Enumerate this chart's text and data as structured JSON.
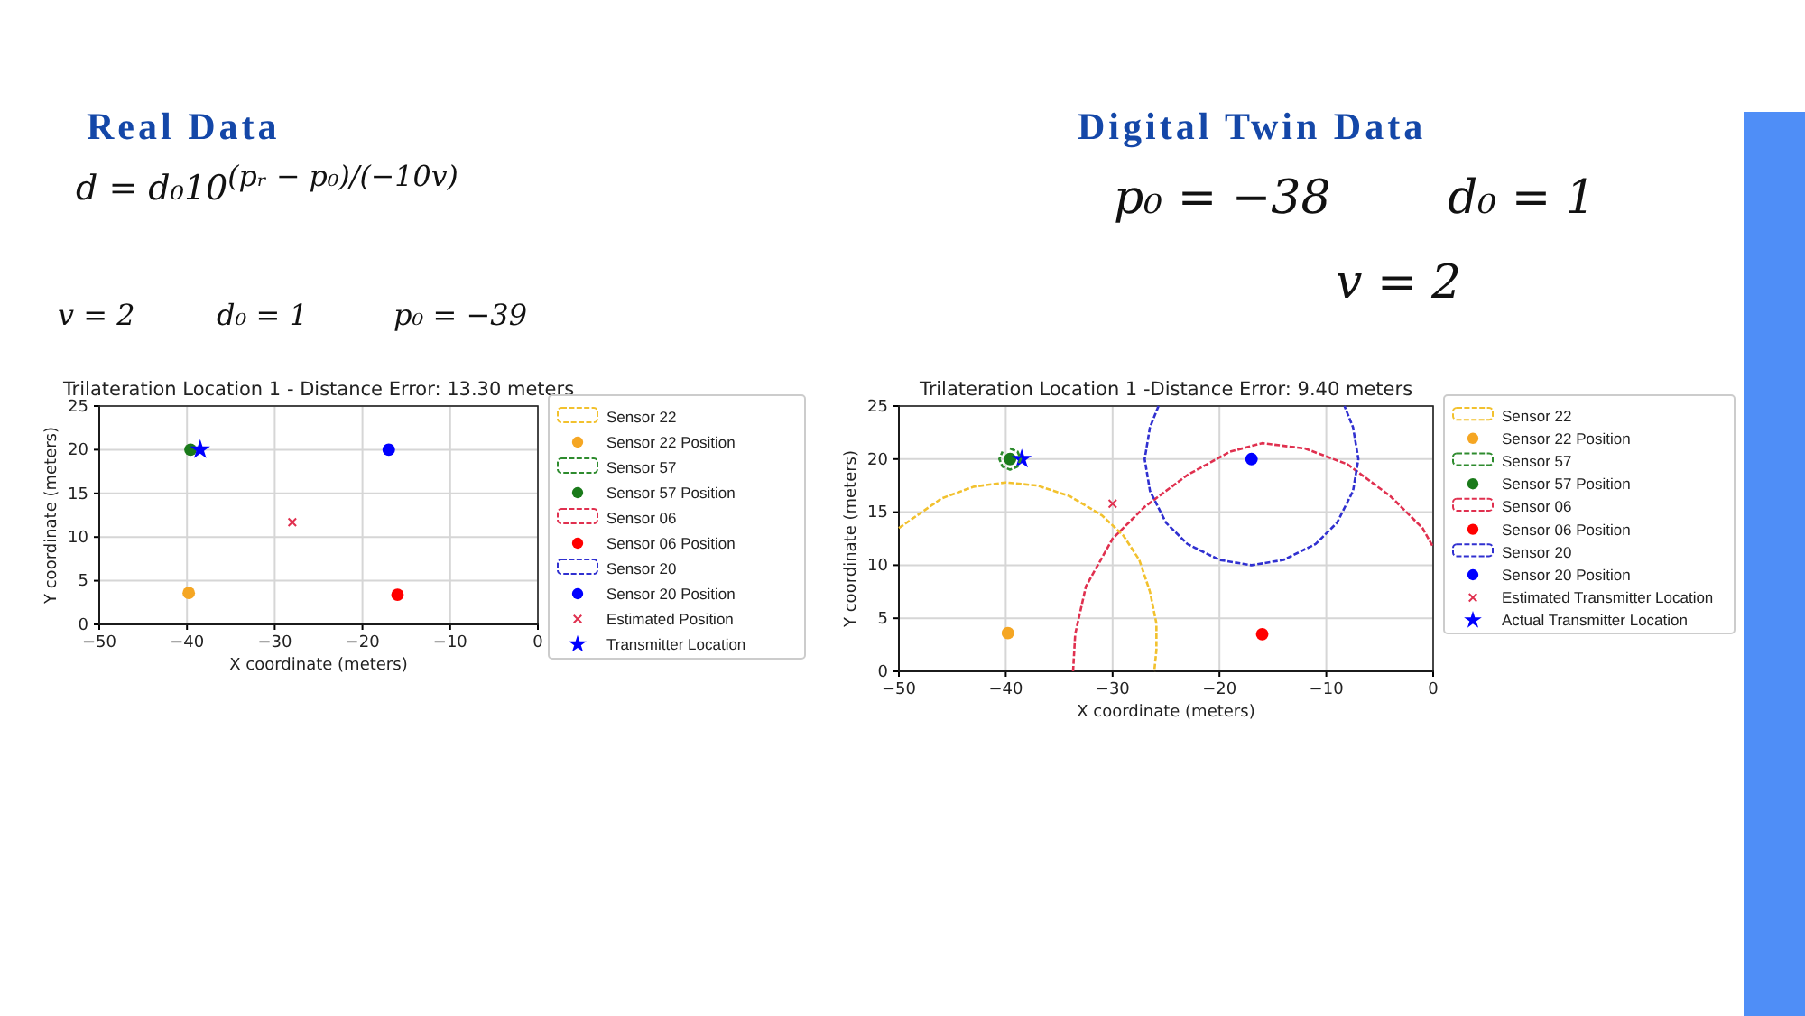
{
  "chart_data": [
    {
      "type": "scatter",
      "title": "Trilateration Location 1 - Distance Error: 13.30 meters",
      "xlabel": "X coordinate (meters)",
      "ylabel": "Y coordinate (meters)",
      "annotations": [
        "Real Data",
        "d = d₀10$^{(pᵣ − p₀)/(−10v)}$",
        "v = 2",
        "d₀ = 1",
        "p₀ = −39"
      ],
      "xlim": [
        -50,
        0
      ],
      "xticks": [
        -50,
        -40,
        -30,
        -20,
        -10,
        0
      ],
      "ylim": [
        0,
        25
      ],
      "yticks": [
        0,
        5,
        10,
        15,
        20,
        25
      ],
      "grid": true,
      "legend": "right",
      "series": [
        {
          "name": "Sensor 22",
          "type": "line",
          "line_style": "dashed",
          "color": "#f2c12e"
        },
        {
          "name": "Sensor 22 Position",
          "marker": "circle",
          "color": "#f5a623",
          "x": [
            -39.8
          ],
          "values": [
            3.6
          ]
        },
        {
          "name": "Sensor 57",
          "type": "line",
          "line_style": "dashed",
          "color": "#2e8b2e"
        },
        {
          "name": "Sensor 57 Position",
          "marker": "circle",
          "color": "#1a7a1a",
          "x": [
            -39.6
          ],
          "values": [
            20
          ]
        },
        {
          "name": "Sensor 06",
          "type": "line",
          "line_style": "dashed",
          "color": "#e0304f"
        },
        {
          "name": "Sensor 06 Position",
          "marker": "circle",
          "color": "#ff0000",
          "x": [
            -16
          ],
          "values": [
            3.4
          ]
        },
        {
          "name": "Sensor 20",
          "type": "line",
          "line_style": "dashed",
          "color": "#3030d0"
        },
        {
          "name": "Sensor 20 Position",
          "marker": "circle",
          "color": "#0000ff",
          "x": [
            -17
          ],
          "values": [
            20
          ]
        },
        {
          "name": "Estimated Position",
          "marker": "cross",
          "color": "#e0304f",
          "x": [
            -28
          ],
          "values": [
            11.7
          ]
        },
        {
          "name": "Transmitter Location",
          "marker": "star",
          "color": "#0000ff",
          "x": [
            -38.5
          ],
          "values": [
            20
          ]
        }
      ]
    },
    {
      "type": "scatter",
      "title": "Trilateration Location 1 -Distance Error: 9.40 meters",
      "xlabel": "X coordinate (meters)",
      "ylabel": "Y coordinate (meters)",
      "annotations": [
        "Digital Twin Data",
        "p₀ = −38",
        "d₀ = 1",
        "v = 2"
      ],
      "xlim": [
        -50,
        0
      ],
      "xticks": [
        -50,
        -40,
        -30,
        -20,
        -10,
        0
      ],
      "ylim": [
        0,
        25
      ],
      "yticks": [
        0,
        5,
        10,
        15,
        20,
        25
      ],
      "grid": true,
      "legend": "right",
      "series": [
        {
          "name": "Sensor 22",
          "type": "line",
          "line_style": "dashed",
          "color": "#f2c12e",
          "x": [
            -50,
            -46,
            -43,
            -40,
            -37,
            -34,
            -31,
            -29,
            -27.5,
            -26.5,
            -25.9,
            -25.9,
            -26.1
          ],
          "values": [
            13.5,
            16.3,
            17.4,
            17.8,
            17.5,
            16.5,
            14.7,
            12.8,
            10.5,
            7.5,
            4.5,
            2,
            0
          ]
        },
        {
          "name": "Sensor 22 Position",
          "marker": "circle",
          "color": "#f5a623",
          "x": [
            -39.8
          ],
          "values": [
            3.6
          ]
        },
        {
          "name": "Sensor 57",
          "type": "line",
          "line_style": "dashed",
          "color": "#2e8b2e",
          "x": [
            -39.6,
            -38.9,
            -38.6,
            -38.9,
            -39.6,
            -40.3,
            -40.6,
            -40.3
          ],
          "values": [
            21,
            20.7,
            20,
            19.3,
            19,
            19.3,
            20,
            20.7
          ]
        },
        {
          "name": "Sensor 57 Position",
          "marker": "circle",
          "color": "#1a7a1a",
          "x": [
            -39.6
          ],
          "values": [
            20
          ]
        },
        {
          "name": "Sensor 06",
          "type": "line",
          "line_style": "dashed",
          "color": "#e0304f",
          "x": [
            -33.7,
            -33.5,
            -32.5,
            -30,
            -27,
            -23,
            -19,
            -16,
            -12,
            -8,
            -4,
            -1,
            0
          ],
          "values": [
            0,
            3.5,
            8,
            12.5,
            15.5,
            18.5,
            20.7,
            21.5,
            21,
            19.5,
            16.5,
            13.5,
            11.7
          ]
        },
        {
          "name": "Sensor 06 Position",
          "marker": "circle",
          "color": "#ff0000",
          "x": [
            -16
          ],
          "values": [
            3.5
          ]
        },
        {
          "name": "Sensor 20",
          "type": "line",
          "line_style": "dashed",
          "color": "#3030d0",
          "x": [
            -25.7,
            -26.5,
            -27,
            -26.5,
            -25,
            -23,
            -20,
            -17,
            -14,
            -11,
            -9,
            -7.5,
            -7,
            -7.5,
            -8.3
          ],
          "values": [
            25,
            23,
            20,
            17,
            14,
            12,
            10.5,
            10,
            10.5,
            12,
            14,
            17,
            20,
            23,
            25
          ]
        },
        {
          "name": "Sensor 20 Position",
          "marker": "circle",
          "color": "#0000ff",
          "x": [
            -17
          ],
          "values": [
            20
          ]
        },
        {
          "name": "Estimated Transmitter Location",
          "marker": "cross",
          "color": "#e0304f",
          "x": [
            -30
          ],
          "values": [
            15.8
          ]
        },
        {
          "name": "Actual Transmitter Location",
          "marker": "star",
          "color": "#0000ff",
          "x": [
            -38.5
          ],
          "values": [
            20
          ]
        }
      ]
    }
  ]
}
